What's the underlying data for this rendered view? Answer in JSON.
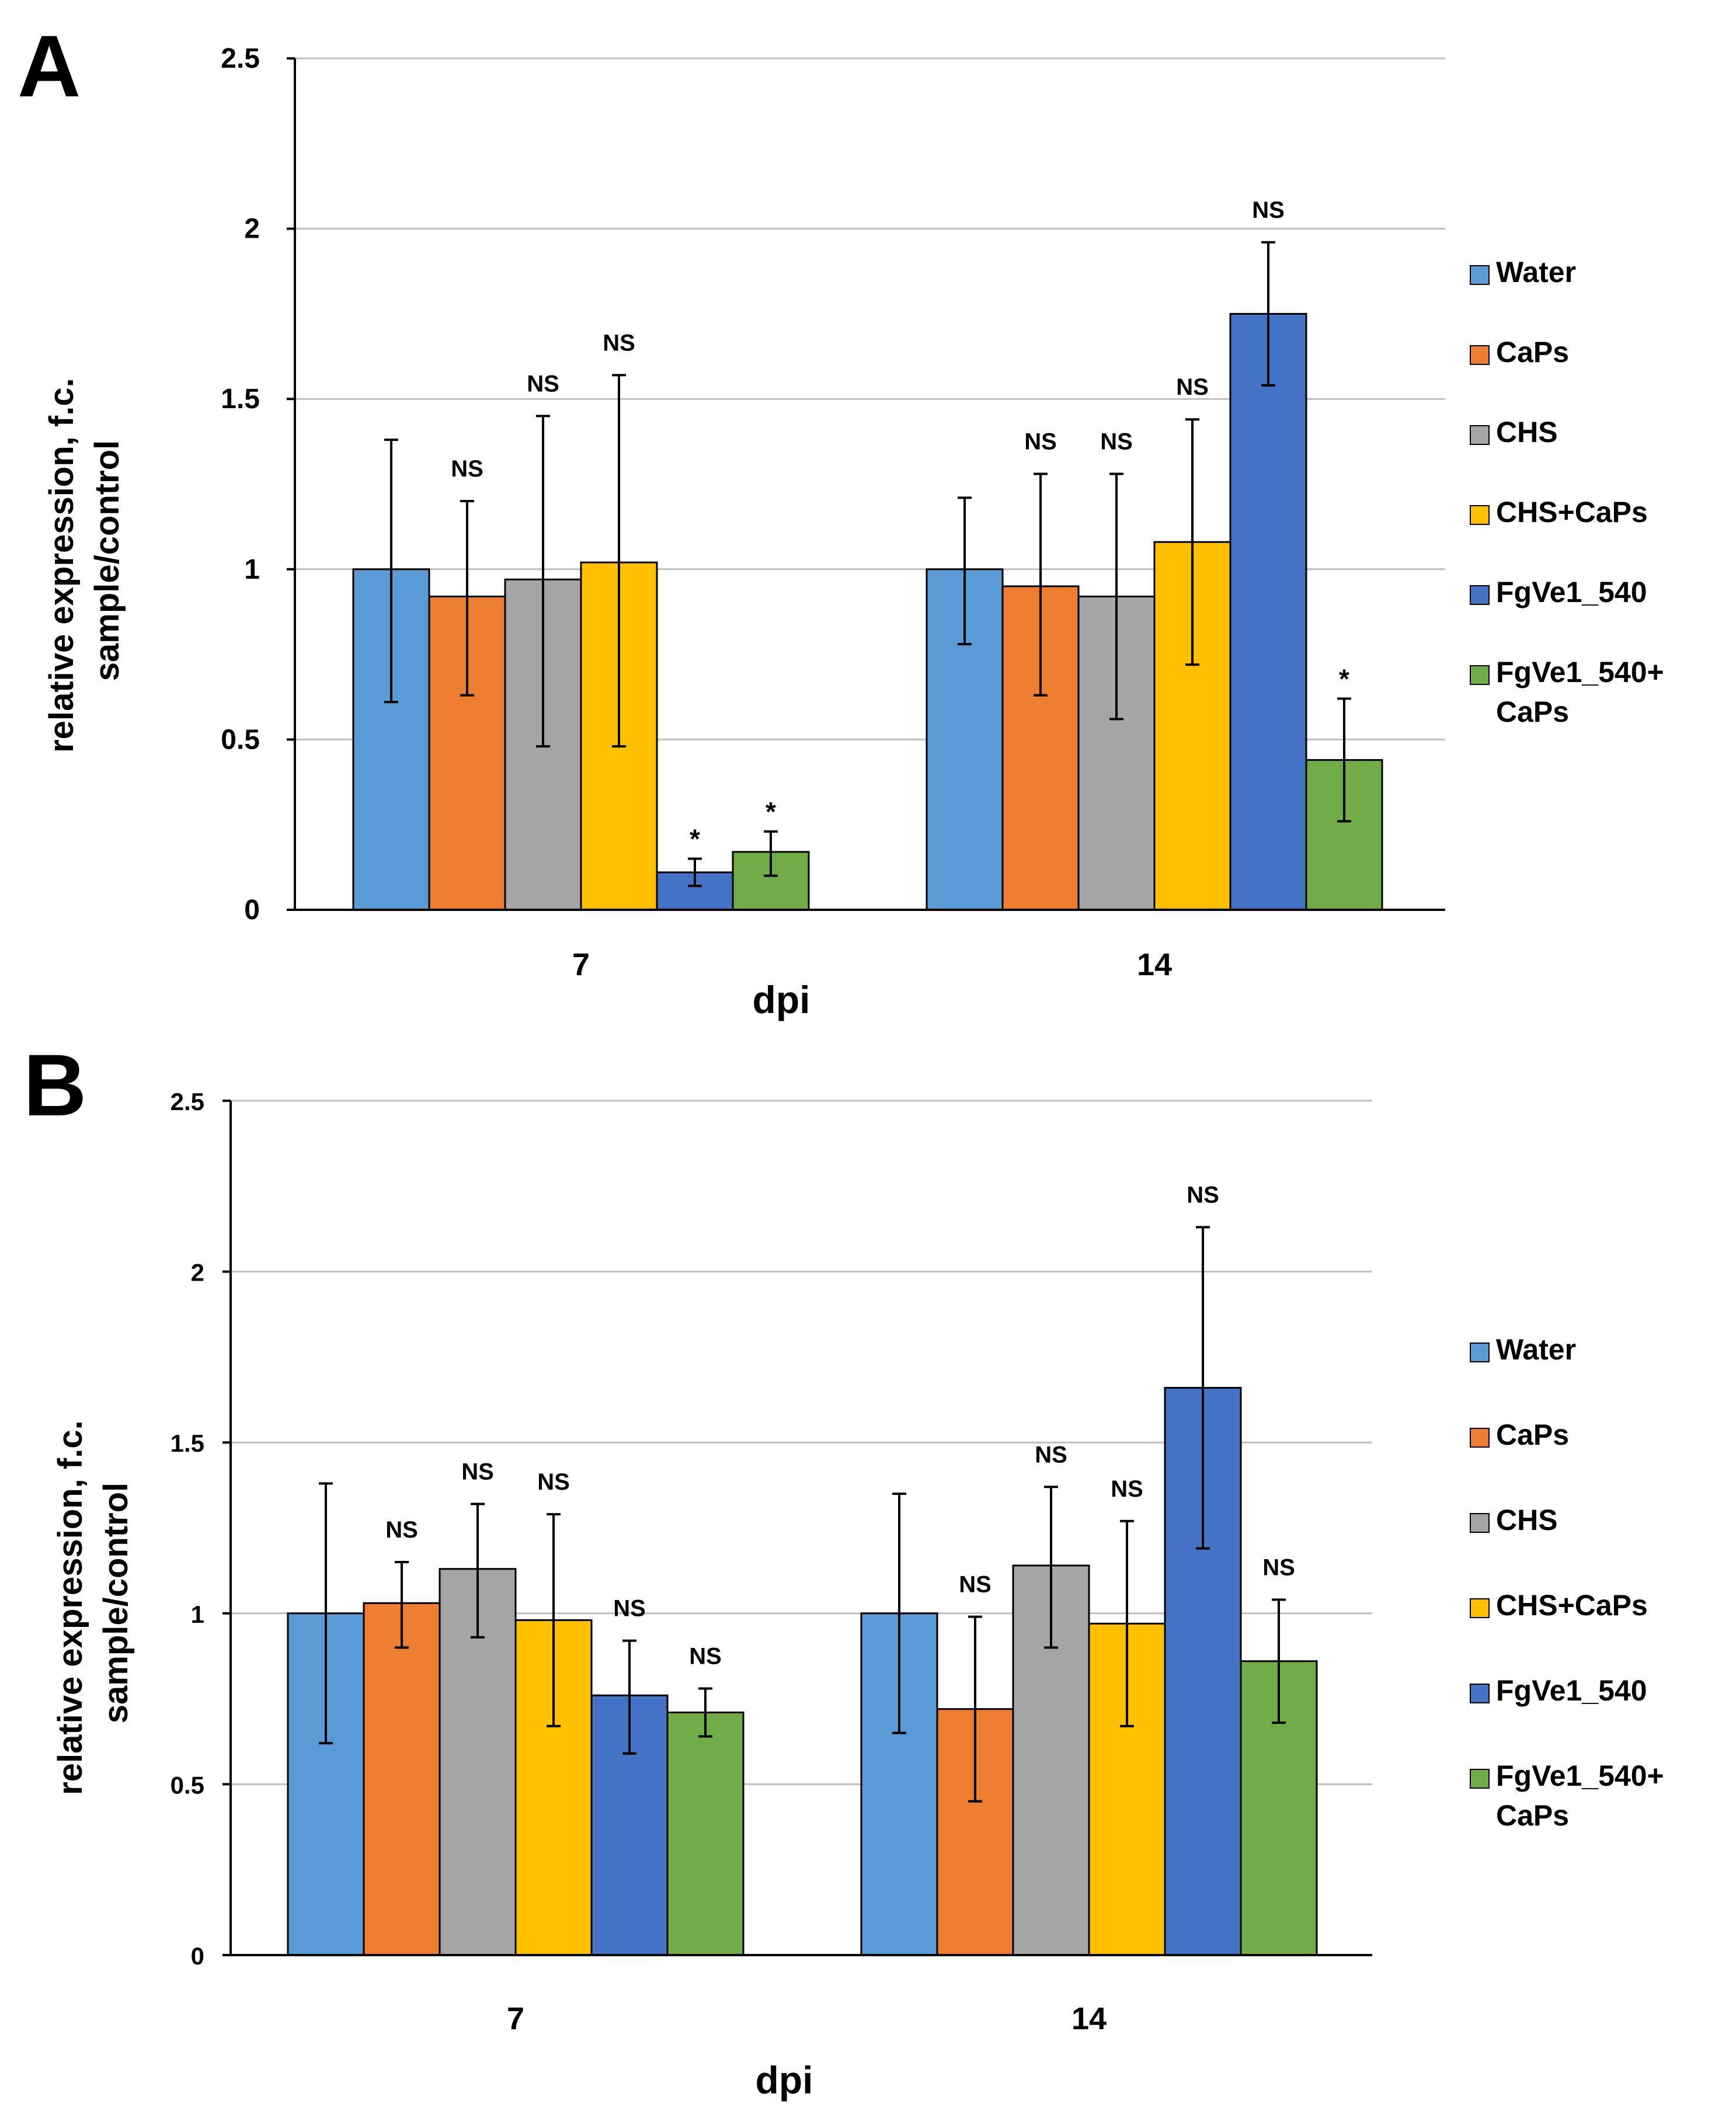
{
  "colors": {
    "Water": "#5b9bd5",
    "CaPs": "#ed7d31",
    "CHS": "#a5a5a5",
    "CHS+CaPs": "#ffc000",
    "FgVe1_540": "#4472c4",
    "FgVe1_540+CaPs": "#70ad47"
  },
  "legend_lines": [
    [
      "Water"
    ],
    [
      "CaPs"
    ],
    [
      "CHS"
    ],
    [
      "CHS+CaPs"
    ],
    [
      "FgVe1_540"
    ],
    [
      "FgVe1_540+",
      "CaPs"
    ]
  ],
  "chart_data": [
    {
      "panel": "A",
      "type": "bar",
      "xlabel": "dpi",
      "ylabel_lines": [
        "relative expression, f.c.",
        "sample/control"
      ],
      "ylim": [
        0,
        2.5
      ],
      "yticks": [
        0,
        0.5,
        1,
        1.5,
        2,
        2.5
      ],
      "ytick_labels": [
        "0",
        "0.5",
        "1",
        "1.5",
        "2",
        "2.5"
      ],
      "grid": true,
      "legend_position": "right",
      "categories": [
        "7",
        "14"
      ],
      "series": [
        {
          "name": "Water",
          "values": [
            1.0,
            1.0
          ],
          "err_low": [
            0.61,
            0.78
          ],
          "err_high": [
            1.38,
            1.21
          ],
          "annotations": [
            "",
            ""
          ]
        },
        {
          "name": "CaPs",
          "values": [
            0.92,
            0.95
          ],
          "err_low": [
            0.63,
            0.63
          ],
          "err_high": [
            1.2,
            1.28
          ],
          "annotations": [
            "NS",
            "NS"
          ]
        },
        {
          "name": "CHS",
          "values": [
            0.97,
            0.92
          ],
          "err_low": [
            0.48,
            0.56
          ],
          "err_high": [
            1.45,
            1.28
          ],
          "annotations": [
            "NS",
            "NS"
          ]
        },
        {
          "name": "CHS+CaPs",
          "values": [
            1.02,
            1.08
          ],
          "err_low": [
            0.48,
            0.72
          ],
          "err_high": [
            1.57,
            1.44
          ],
          "annotations": [
            "NS",
            "NS"
          ]
        },
        {
          "name": "FgVe1_540",
          "values": [
            0.11,
            1.75
          ],
          "err_low": [
            0.07,
            1.54
          ],
          "err_high": [
            0.15,
            1.96
          ],
          "annotations": [
            "*",
            "NS"
          ]
        },
        {
          "name": "FgVe1_540+CaPs",
          "values": [
            0.17,
            0.44
          ],
          "err_low": [
            0.1,
            0.26
          ],
          "err_high": [
            0.23,
            0.62
          ],
          "annotations": [
            "*",
            "*"
          ]
        }
      ]
    },
    {
      "panel": "B",
      "type": "bar",
      "xlabel": "dpi",
      "ylabel_lines": [
        "relative expression, f.c.",
        "sample/control"
      ],
      "ylim": [
        0,
        2.5
      ],
      "yticks": [
        0,
        0.5,
        1,
        1.5,
        2,
        2.5
      ],
      "ytick_labels": [
        "0",
        "0.5",
        "1",
        "1.5",
        "2",
        "2.5"
      ],
      "grid": true,
      "legend_position": "right",
      "categories": [
        "7",
        "14"
      ],
      "series": [
        {
          "name": "Water",
          "values": [
            1.0,
            1.0
          ],
          "err_low": [
            0.62,
            0.65
          ],
          "err_high": [
            1.38,
            1.35
          ],
          "annotations": [
            "",
            ""
          ]
        },
        {
          "name": "CaPs",
          "values": [
            1.03,
            0.72
          ],
          "err_low": [
            0.9,
            0.45
          ],
          "err_high": [
            1.15,
            0.99
          ],
          "annotations": [
            "NS",
            "NS"
          ]
        },
        {
          "name": "CHS",
          "values": [
            1.13,
            1.14
          ],
          "err_low": [
            0.93,
            0.9
          ],
          "err_high": [
            1.32,
            1.37
          ],
          "annotations": [
            "NS",
            "NS"
          ]
        },
        {
          "name": "CHS+CaPs",
          "values": [
            0.98,
            0.97
          ],
          "err_low": [
            0.67,
            0.67
          ],
          "err_high": [
            1.29,
            1.27
          ],
          "annotations": [
            "NS",
            "NS"
          ]
        },
        {
          "name": "FgVe1_540",
          "values": [
            0.76,
            1.66
          ],
          "err_low": [
            0.59,
            1.19
          ],
          "err_high": [
            0.92,
            2.13
          ],
          "annotations": [
            "NS",
            "NS"
          ]
        },
        {
          "name": "FgVe1_540+CaPs",
          "values": [
            0.71,
            0.86
          ],
          "err_low": [
            0.64,
            0.68
          ],
          "err_high": [
            0.78,
            1.04
          ],
          "annotations": [
            "NS",
            "NS"
          ]
        }
      ]
    }
  ]
}
